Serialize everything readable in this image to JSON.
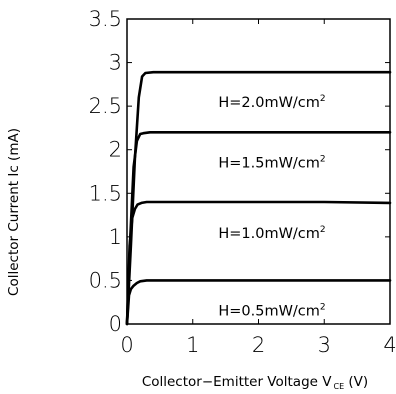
{
  "chart_data": {
    "type": "line",
    "xlabel_prefix": "Collector−Emitter Voltage V",
    "xlabel_subscript": "CE",
    "xlabel_suffix": " (V)",
    "ylabel": "Collector Current Ic (mA)",
    "xlim": [
      0,
      4
    ],
    "ylim": [
      0,
      3.5
    ],
    "xticks": [
      "0",
      "1",
      "2",
      "3",
      "4"
    ],
    "yticks": [
      "0",
      "0.5",
      "1",
      "1.5",
      "2",
      "2.5",
      "3",
      "3.5"
    ],
    "grid": false,
    "series": [
      {
        "label_main": "H=0.5mW/cm",
        "label_sup": "2",
        "x": [
          0,
          0.03,
          0.06,
          0.1,
          0.15,
          0.2,
          0.3,
          1,
          2,
          3,
          4
        ],
        "y": [
          0,
          0.33,
          0.4,
          0.44,
          0.47,
          0.49,
          0.5,
          0.5,
          0.5,
          0.5,
          0.5
        ]
      },
      {
        "label_main": "H=1.0mW/cm",
        "label_sup": "2",
        "x": [
          0,
          0.04,
          0.08,
          0.12,
          0.16,
          0.22,
          0.3,
          1,
          2,
          3,
          4
        ],
        "y": [
          0,
          0.9,
          1.22,
          1.32,
          1.37,
          1.39,
          1.4,
          1.4,
          1.4,
          1.4,
          1.39
        ]
      },
      {
        "label_main": "H=1.5mW/cm",
        "label_sup": "2",
        "x": [
          0,
          0.05,
          0.1,
          0.15,
          0.2,
          0.25,
          0.35,
          1,
          2,
          3,
          4
        ],
        "y": [
          0,
          1.0,
          1.8,
          2.1,
          2.18,
          2.19,
          2.2,
          2.2,
          2.2,
          2.2,
          2.2
        ]
      },
      {
        "label_main": "H=2.0mW/cm",
        "label_sup": "2",
        "x": [
          0,
          0.06,
          0.12,
          0.18,
          0.23,
          0.28,
          0.4,
          1,
          2,
          3,
          4
        ],
        "y": [
          0,
          0.9,
          1.9,
          2.6,
          2.84,
          2.88,
          2.89,
          2.89,
          2.89,
          2.89,
          2.89
        ]
      }
    ]
  }
}
